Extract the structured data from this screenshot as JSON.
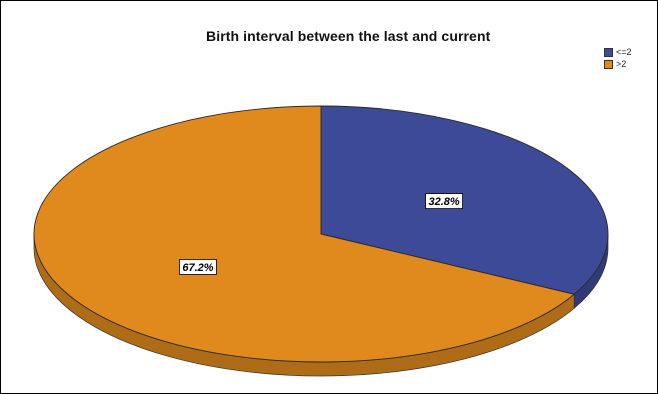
{
  "chart_data": {
    "type": "pie",
    "title": "Birth interval between the last and current",
    "categories": [
      "<=2",
      ">2"
    ],
    "values": [
      32.8,
      67.2
    ],
    "labels": [
      "32.8%",
      "67.2%"
    ],
    "colors": [
      "#3d4a98",
      "#e08a1e"
    ],
    "legend_position": "top-right",
    "style": "3d"
  }
}
